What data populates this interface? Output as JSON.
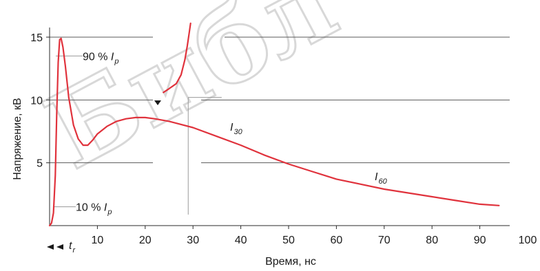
{
  "chart_data": {
    "type": "line",
    "title": "",
    "xlabel": "Время, нс",
    "ylabel": "Напряжение, кВ",
    "xlim": [
      0,
      100
    ],
    "ylim": [
      0,
      15
    ],
    "xticks": [
      10,
      20,
      30,
      40,
      50,
      60,
      70,
      80,
      90,
      100
    ],
    "yticks": [
      5,
      10,
      15
    ],
    "grid": "horizontal",
    "colors": {
      "curve": "#e0323c",
      "grid": "#5a5a5a",
      "text": "#1a1a1a"
    },
    "series": [
      {
        "name": "",
        "x": [
          0,
          0.4,
          0.8,
          1.2,
          1.5,
          1.8,
          2.1,
          2.4,
          2.8,
          3.3,
          4.0,
          5.0,
          6.0,
          7.0,
          8.0,
          9.0,
          10.0,
          12.0,
          14.0,
          16.0,
          18.0,
          20.0,
          22.0,
          25.0,
          30.0,
          35.0,
          40.0,
          45.0,
          50.0,
          55.0,
          60.0,
          65.0,
          70.0,
          75.0,
          80.0,
          85.0,
          90.0,
          94.0
        ],
        "y": [
          0,
          0.2,
          1.0,
          4.0,
          9.0,
          13.0,
          14.8,
          14.9,
          14.2,
          12.7,
          10.2,
          8.0,
          6.9,
          6.4,
          6.4,
          6.8,
          7.3,
          7.9,
          8.3,
          8.5,
          8.6,
          8.6,
          8.5,
          8.3,
          7.8,
          7.1,
          6.4,
          5.6,
          4.9,
          4.3,
          3.7,
          3.3,
          2.9,
          2.6,
          2.3,
          2.0,
          1.7,
          1.6
        ]
      },
      {
        "name": "",
        "x": [
          23.8,
          25.0,
          26.5,
          27.5,
          28.3,
          28.8,
          29.2,
          29.5
        ],
        "y": [
          10.6,
          10.9,
          11.3,
          12.0,
          13.2,
          14.3,
          15.3,
          16.1
        ]
      }
    ],
    "annotations": [
      {
        "text": "90 %",
        "var": "I",
        "sub": "p",
        "x": 2.5,
        "y": 13.5
      },
      {
        "text": "10 %",
        "var": "I",
        "sub": "p",
        "x": 1.5,
        "y": 1.5
      },
      {
        "text": "",
        "var": "I",
        "sub": "30",
        "x": 35,
        "y": 7.7
      },
      {
        "text": "",
        "var": "I",
        "sub": "60",
        "x": 72,
        "y": 3.9
      },
      {
        "text": "",
        "var": "t",
        "sub": "r",
        "x": 2,
        "y": -1.5
      }
    ]
  },
  "watermark": "Библ"
}
